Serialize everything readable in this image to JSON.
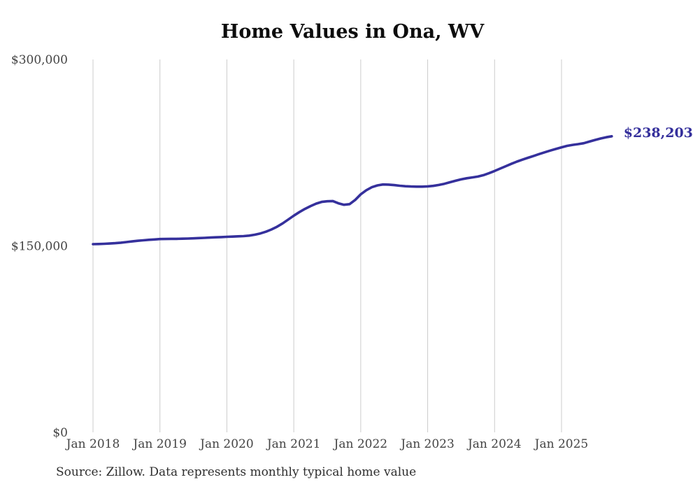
{
  "chart_data": {
    "type": "line",
    "title": "Home Values in Ona, WV",
    "source_note": "Source: Zillow. Data represents monthly typical home value",
    "end_annotation": "$238,203",
    "end_value": 238203,
    "xlabel": "",
    "ylabel": "",
    "ylim": [
      0,
      300000
    ],
    "grid": "vertical-only",
    "legend": "none",
    "colors": {
      "line": "#35309c",
      "end_label": "#35309c",
      "gridline": "#cccccc",
      "tick_text": "#444444",
      "title_text": "#0d0d0d",
      "source_text": "#2e2e2e"
    },
    "y_ticks": [
      {
        "label": "$0",
        "value": 0
      },
      {
        "label": "$150,000",
        "value": 150000
      },
      {
        "label": "$300,000",
        "value": 300000
      }
    ],
    "x_tick_labels": [
      "Jan 2018",
      "Jan 2019",
      "Jan 2020",
      "Jan 2021",
      "Jan 2022",
      "Jan 2023",
      "Jan 2024",
      "Jan 2025"
    ],
    "series": [
      {
        "name": "Monthly typical home value",
        "frequency": "monthly",
        "start": "2018-01",
        "end": "2025-10",
        "values": [
          151400,
          151500,
          151700,
          151900,
          152200,
          152600,
          153100,
          153600,
          154100,
          154500,
          154900,
          155200,
          155500,
          155600,
          155700,
          155700,
          155800,
          155900,
          156100,
          156300,
          156500,
          156700,
          156900,
          157100,
          157300,
          157500,
          157700,
          157900,
          158300,
          159000,
          160000,
          161400,
          163200,
          165400,
          168100,
          171200,
          174300,
          177200,
          179800,
          182000,
          184000,
          185400,
          185900,
          186100,
          184300,
          183100,
          183600,
          187000,
          191500,
          194800,
          197200,
          198700,
          199400,
          199300,
          198900,
          198400,
          198000,
          197800,
          197700,
          197700,
          197900,
          198300,
          199000,
          200000,
          201200,
          202400,
          203500,
          204400,
          205100,
          205800,
          206900,
          208500,
          210300,
          212200,
          214100,
          216000,
          217800,
          219400,
          220900,
          222400,
          223900,
          225300,
          226700,
          228000,
          229300,
          230500,
          231300,
          231900,
          232600,
          233900,
          235200,
          236400,
          237400,
          238203
        ]
      }
    ]
  }
}
